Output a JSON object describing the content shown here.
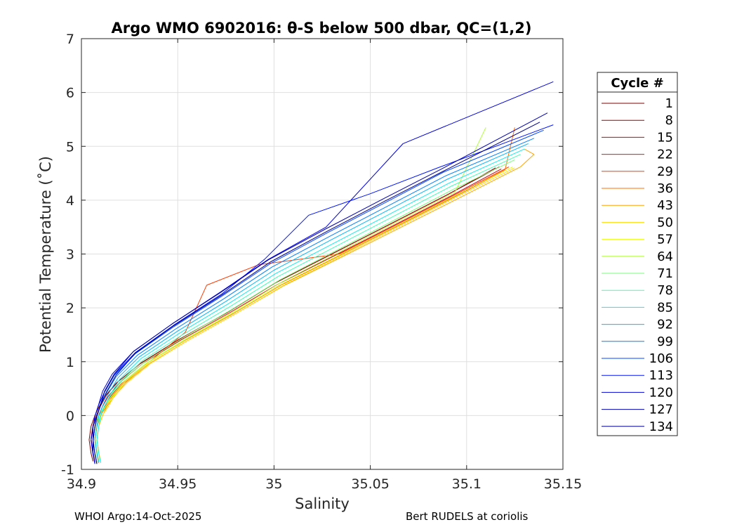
{
  "chart_data": {
    "type": "line",
    "title": "Argo WMO 6902016: θ-S below 500 dbar,  QC=(1,2)",
    "xlabel": "Salinity",
    "ylabel": "Potential Temperature (˚C)",
    "xlim": [
      34.9,
      35.15
    ],
    "ylim": [
      -1,
      7
    ],
    "xticks": [
      34.9,
      34.95,
      35.0,
      35.05,
      35.1,
      35.15
    ],
    "xtick_labels": [
      "34.9",
      "34.95",
      "35",
      "35.05",
      "35.1",
      "35.15"
    ],
    "yticks": [
      -1,
      0,
      1,
      2,
      3,
      4,
      5,
      6,
      7
    ],
    "ytick_labels": [
      "-1",
      "0",
      "1",
      "2",
      "3",
      "4",
      "5",
      "6",
      "7"
    ],
    "grid": true,
    "legend": {
      "title": "Cycle #",
      "placement": "outside-right",
      "entries": [
        {
          "label": "1",
          "color": "#800000"
        },
        {
          "label": "8",
          "color": "#a20000"
        },
        {
          "label": "15",
          "color": "#d00000"
        },
        {
          "label": "22",
          "color": "#f01000"
        },
        {
          "label": "29",
          "color": "#ff3a00"
        },
        {
          "label": "36",
          "color": "#ff7000"
        },
        {
          "label": "43",
          "color": "#ffa400"
        },
        {
          "label": "50",
          "color": "#ffdc00"
        },
        {
          "label": "57",
          "color": "#e8ff10"
        },
        {
          "label": "64",
          "color": "#b4ff42"
        },
        {
          "label": "71",
          "color": "#7aff7a"
        },
        {
          "label": "78",
          "color": "#44ffb2"
        },
        {
          "label": "85",
          "color": "#12ecec"
        },
        {
          "label": "92",
          "color": "#00b8ff"
        },
        {
          "label": "99",
          "color": "#0080ff"
        },
        {
          "label": "106",
          "color": "#0048ff"
        },
        {
          "label": "113",
          "color": "#0014ff"
        },
        {
          "label": "120",
          "color": "#0000dc"
        },
        {
          "label": "127",
          "color": "#0000b0"
        },
        {
          "label": "134",
          "color": "#000088"
        }
      ]
    },
    "series": [
      {
        "name": "1",
        "color": "#800000",
        "x": [
          34.906,
          34.905,
          34.904,
          34.905,
          34.907,
          34.909,
          34.912,
          34.918,
          34.93,
          34.95,
          34.975,
          35.0,
          35.03,
          35.06,
          35.09,
          35.115
        ],
        "y": [
          -0.85,
          -0.7,
          -0.45,
          -0.2,
          0.0,
          0.15,
          0.35,
          0.6,
          0.95,
          1.4,
          1.9,
          2.45,
          3.0,
          3.55,
          4.1,
          4.6
        ]
      },
      {
        "name": "8",
        "color": "#a20000",
        "x": [
          34.907,
          34.906,
          34.905,
          34.906,
          34.908,
          34.91,
          34.913,
          34.919,
          34.931,
          34.951,
          34.976,
          35.001,
          35.031,
          35.061,
          35.091,
          35.117
        ],
        "y": [
          -0.86,
          -0.68,
          -0.42,
          -0.18,
          0.02,
          0.18,
          0.38,
          0.63,
          0.98,
          1.42,
          1.92,
          2.47,
          3.02,
          3.57,
          4.12,
          4.62
        ]
      },
      {
        "name": "15",
        "color": "#d00000",
        "x": [
          34.908,
          34.907,
          34.906,
          34.907,
          34.909,
          34.911,
          34.914,
          34.92,
          34.932,
          34.952,
          34.977,
          35.002,
          35.032,
          35.062,
          35.092,
          35.118
        ],
        "y": [
          -0.87,
          -0.69,
          -0.44,
          -0.19,
          0.01,
          0.17,
          0.36,
          0.62,
          0.97,
          1.41,
          1.91,
          2.44,
          2.98,
          3.53,
          4.08,
          4.58
        ]
      },
      {
        "name": "22",
        "color": "#f01000",
        "x": [
          34.908,
          34.907,
          34.906,
          34.907,
          34.909,
          34.912,
          34.915,
          34.921,
          34.933,
          34.953,
          34.978,
          35.003,
          35.033,
          35.063,
          35.093,
          35.12
        ],
        "y": [
          -0.86,
          -0.7,
          -0.43,
          -0.2,
          0.0,
          0.16,
          0.35,
          0.6,
          0.95,
          1.39,
          1.88,
          2.42,
          2.96,
          3.5,
          4.05,
          4.55
        ]
      },
      {
        "name": "29",
        "color": "#ff3a00",
        "x": [
          34.909,
          34.908,
          34.907,
          34.908,
          34.91,
          34.912,
          34.916,
          34.922,
          34.934,
          34.954,
          34.965,
          34.992,
          35.034,
          35.064,
          35.094,
          35.122
        ],
        "y": [
          -0.88,
          -0.7,
          -0.45,
          -0.21,
          -0.01,
          0.15,
          0.34,
          0.6,
          0.96,
          1.55,
          2.42,
          2.8,
          3.0,
          3.55,
          4.1,
          4.62
        ]
      },
      {
        "name": "36",
        "color": "#ff7000",
        "x": [
          34.909,
          34.908,
          34.907,
          34.908,
          34.91,
          34.913,
          34.916,
          34.922,
          34.934,
          34.954,
          34.979,
          35.004,
          35.034,
          35.064,
          35.094,
          35.12,
          35.125
        ],
        "y": [
          -0.87,
          -0.68,
          -0.42,
          -0.19,
          0.01,
          0.17,
          0.36,
          0.62,
          0.97,
          1.4,
          1.9,
          2.43,
          2.97,
          3.52,
          4.07,
          4.57,
          5.35
        ]
      },
      {
        "name": "43",
        "color": "#ffa400",
        "x": [
          34.91,
          34.909,
          34.908,
          34.909,
          34.911,
          34.913,
          34.917,
          34.923,
          34.935,
          34.955,
          34.98,
          35.005,
          35.035,
          35.065,
          35.095,
          35.128,
          35.135,
          35.13
        ],
        "y": [
          -0.86,
          -0.69,
          -0.44,
          -0.2,
          0.0,
          0.16,
          0.35,
          0.61,
          0.96,
          1.39,
          1.89,
          2.41,
          2.94,
          3.48,
          4.02,
          4.62,
          4.85,
          4.95
        ]
      },
      {
        "name": "50",
        "color": "#ffdc00",
        "x": [
          34.91,
          34.909,
          34.908,
          34.909,
          34.911,
          34.914,
          34.917,
          34.924,
          34.936,
          34.956,
          34.981,
          35.006,
          35.036,
          35.066,
          35.096,
          35.125
        ],
        "y": [
          -0.85,
          -0.68,
          -0.43,
          -0.19,
          0.01,
          0.17,
          0.36,
          0.62,
          0.97,
          1.41,
          1.91,
          2.44,
          2.98,
          3.53,
          4.08,
          4.6
        ]
      },
      {
        "name": "57",
        "color": "#e8ff10",
        "x": [
          34.909,
          34.908,
          34.907,
          34.908,
          34.91,
          34.913,
          34.917,
          34.923,
          34.935,
          34.955,
          34.98,
          35.005,
          35.035,
          35.065,
          35.095,
          35.124
        ],
        "y": [
          -0.84,
          -0.66,
          -0.41,
          -0.17,
          0.03,
          0.19,
          0.38,
          0.64,
          0.99,
          1.43,
          1.93,
          2.46,
          3.0,
          3.55,
          4.1,
          4.62
        ]
      },
      {
        "name": "64",
        "color": "#b4ff42",
        "x": [
          34.909,
          34.908,
          34.907,
          34.908,
          34.91,
          34.912,
          34.916,
          34.922,
          34.934,
          34.954,
          34.979,
          35.004,
          35.034,
          35.064,
          35.094,
          35.11
        ],
        "y": [
          -0.85,
          -0.67,
          -0.42,
          -0.18,
          0.02,
          0.18,
          0.37,
          0.63,
          0.98,
          1.42,
          1.93,
          2.48,
          3.04,
          3.6,
          4.15,
          5.35
        ]
      },
      {
        "name": "71",
        "color": "#7aff7a",
        "x": [
          34.908,
          34.907,
          34.906,
          34.907,
          34.909,
          34.912,
          34.915,
          34.921,
          34.933,
          34.953,
          34.978,
          35.003,
          35.033,
          35.063,
          35.093,
          35.125
        ],
        "y": [
          -0.86,
          -0.68,
          -0.43,
          -0.19,
          0.01,
          0.17,
          0.37,
          0.64,
          1.0,
          1.45,
          1.97,
          2.52,
          3.08,
          3.64,
          4.2,
          4.75
        ]
      },
      {
        "name": "78",
        "color": "#44ffb2",
        "x": [
          34.909,
          34.908,
          34.907,
          34.908,
          34.91,
          34.912,
          34.915,
          34.921,
          34.932,
          34.952,
          34.977,
          35.002,
          35.032,
          35.062,
          35.092,
          35.128
        ],
        "y": [
          -0.87,
          -0.69,
          -0.44,
          -0.2,
          0.0,
          0.17,
          0.38,
          0.66,
          1.03,
          1.49,
          2.02,
          2.58,
          3.14,
          3.7,
          4.26,
          4.85
        ]
      },
      {
        "name": "85",
        "color": "#12ecec",
        "x": [
          34.91,
          34.909,
          34.908,
          34.909,
          34.91,
          34.912,
          34.915,
          34.92,
          34.931,
          34.951,
          34.976,
          35.001,
          35.031,
          35.061,
          35.091,
          35.13
        ],
        "y": [
          -0.88,
          -0.7,
          -0.45,
          -0.21,
          -0.01,
          0.17,
          0.39,
          0.68,
          1.06,
          1.53,
          2.07,
          2.64,
          3.2,
          3.76,
          4.32,
          4.95
        ]
      },
      {
        "name": "92",
        "color": "#00b8ff",
        "x": [
          34.909,
          34.908,
          34.907,
          34.908,
          34.909,
          34.911,
          34.914,
          34.919,
          34.93,
          34.95,
          34.975,
          35.0,
          35.03,
          35.06,
          35.09,
          35.132
        ],
        "y": [
          -0.87,
          -0.7,
          -0.45,
          -0.21,
          -0.01,
          0.18,
          0.4,
          0.7,
          1.09,
          1.57,
          2.12,
          2.7,
          3.27,
          3.83,
          4.39,
          5.05
        ]
      },
      {
        "name": "99",
        "color": "#0080ff",
        "x": [
          34.908,
          34.907,
          34.906,
          34.907,
          34.908,
          34.91,
          34.913,
          34.918,
          34.929,
          34.949,
          34.974,
          34.999,
          35.029,
          35.059,
          35.089,
          35.135
        ],
        "y": [
          -0.88,
          -0.71,
          -0.46,
          -0.22,
          -0.01,
          0.19,
          0.42,
          0.72,
          1.12,
          1.61,
          2.17,
          2.76,
          3.33,
          3.89,
          4.45,
          5.15
        ]
      },
      {
        "name": "106",
        "color": "#0048ff",
        "x": [
          34.908,
          34.907,
          34.906,
          34.907,
          34.908,
          34.91,
          34.912,
          34.917,
          34.928,
          34.948,
          34.973,
          34.998,
          35.028,
          35.058,
          35.088,
          35.14
        ],
        "y": [
          -0.89,
          -0.72,
          -0.47,
          -0.23,
          -0.02,
          0.19,
          0.43,
          0.74,
          1.15,
          1.65,
          2.22,
          2.82,
          3.4,
          3.96,
          4.52,
          5.3
        ]
      },
      {
        "name": "113",
        "color": "#0014ff",
        "x": [
          34.907,
          34.906,
          34.905,
          34.906,
          34.907,
          34.909,
          34.912,
          34.917,
          34.928,
          34.948,
          34.973,
          34.995,
          35.018,
          35.05,
          35.085,
          35.145
        ],
        "y": [
          -0.9,
          -0.72,
          -0.47,
          -0.23,
          -0.02,
          0.2,
          0.44,
          0.76,
          1.17,
          1.68,
          2.26,
          2.9,
          3.72,
          4.12,
          4.6,
          5.4
        ]
      },
      {
        "name": "120",
        "color": "#0000dc",
        "x": [
          34.907,
          34.906,
          34.905,
          34.906,
          34.907,
          34.909,
          34.911,
          34.916,
          34.927,
          34.947,
          34.972,
          34.997,
          35.027,
          35.067,
          35.145
        ],
        "y": [
          -0.89,
          -0.71,
          -0.46,
          -0.22,
          -0.01,
          0.21,
          0.45,
          0.77,
          1.19,
          1.7,
          2.29,
          2.9,
          3.5,
          5.05,
          6.2
        ]
      },
      {
        "name": "127",
        "color": "#0000b0",
        "x": [
          34.907,
          34.906,
          34.906,
          34.906,
          34.908,
          34.91,
          34.912,
          34.917,
          34.927,
          34.947,
          34.972,
          34.997,
          35.027,
          35.057,
          35.087,
          35.142
        ],
        "y": [
          -0.88,
          -0.7,
          -0.45,
          -0.21,
          0.0,
          0.21,
          0.45,
          0.77,
          1.19,
          1.7,
          2.28,
          2.89,
          3.47,
          4.03,
          4.58,
          5.62
        ]
      },
      {
        "name": "134",
        "color": "#000088",
        "x": [
          34.908,
          34.907,
          34.906,
          34.907,
          34.908,
          34.91,
          34.913,
          34.918,
          34.928,
          34.948,
          34.973,
          34.998,
          35.028,
          35.058,
          35.088,
          35.138
        ],
        "y": [
          -0.9,
          -0.72,
          -0.46,
          -0.22,
          -0.01,
          0.2,
          0.44,
          0.75,
          1.16,
          1.67,
          2.24,
          2.85,
          3.43,
          3.99,
          4.54,
          5.45
        ]
      }
    ]
  },
  "footer": {
    "left": "WHOI Argo:14-Oct-2025",
    "right": "Bert RUDELS at coriolis"
  }
}
